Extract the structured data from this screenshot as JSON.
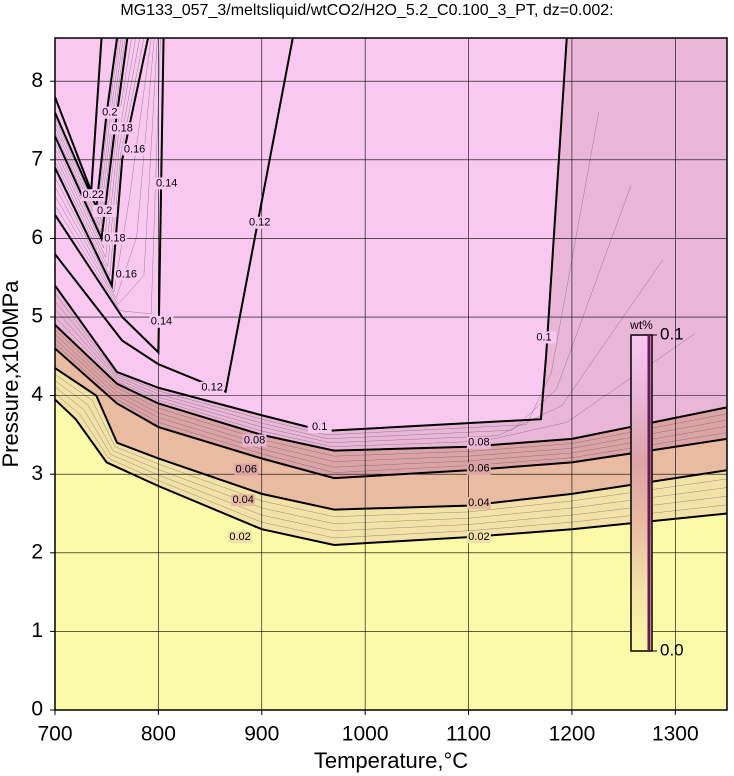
{
  "chart_data": {
    "type": "contour",
    "title": "MG133_057_3/meltsliquid/wtCO2/H2O_5.2_C0.100_3_PT, dz=0.002:",
    "x_label": "Temperature,°C",
    "y_label": "Pressure,x100MPa",
    "xlim": [
      700,
      1350
    ],
    "ylim": [
      0,
      8.55
    ],
    "xticks": [
      700,
      800,
      900,
      1000,
      1100,
      1200,
      1300
    ],
    "yticks": [
      0,
      1,
      2,
      3,
      4,
      5,
      6,
      7,
      8
    ],
    "grid": true,
    "contours": [
      {
        "level": 0.02,
        "x": [
          700,
          720,
          750,
          800,
          900,
          970,
          1100,
          1200,
          1350
        ],
        "y": [
          3.95,
          3.7,
          3.15,
          2.85,
          2.3,
          2.1,
          2.2,
          2.3,
          2.5
        ],
        "labels": [
          {
            "x": 879,
            "y": 2.2
          },
          {
            "x": 1110,
            "y": 2.2
          }
        ]
      },
      {
        "level": 0.04,
        "x": [
          700,
          740,
          760,
          800,
          900,
          970,
          1100,
          1200,
          1350
        ],
        "y": [
          4.35,
          4.0,
          3.4,
          3.2,
          2.75,
          2.55,
          2.6,
          2.75,
          3.05
        ],
        "labels": [
          {
            "x": 882,
            "y": 2.67
          },
          {
            "x": 1110,
            "y": 2.63
          }
        ]
      },
      {
        "level": 0.06,
        "x": [
          700,
          760,
          800,
          900,
          970,
          1100,
          1200,
          1350
        ],
        "y": [
          4.6,
          3.9,
          3.6,
          3.2,
          2.95,
          3.05,
          3.15,
          3.45
        ],
        "labels": [
          {
            "x": 885,
            "y": 3.06
          },
          {
            "x": 1110,
            "y": 3.07
          }
        ]
      },
      {
        "level": 0.08,
        "x": [
          700,
          760,
          800,
          900,
          970,
          1100,
          1200,
          1350
        ],
        "y": [
          4.9,
          4.15,
          3.9,
          3.5,
          3.3,
          3.35,
          3.45,
          3.85
        ],
        "labels": [
          {
            "x": 893,
            "y": 3.43
          },
          {
            "x": 1110,
            "y": 3.4
          }
        ]
      },
      {
        "level": 0.1,
        "x": [
          700,
          760,
          800,
          900,
          960,
          1170,
          1175,
          1195
        ],
        "y": [
          5.4,
          4.3,
          4.1,
          3.75,
          3.55,
          3.7,
          4.5,
          8.55
        ],
        "labels": [
          {
            "x": 956,
            "y": 3.6
          },
          {
            "x": 1173,
            "y": 4.74
          }
        ]
      },
      {
        "level": 0.12,
        "x": [
          700,
          765,
          800,
          865,
          930
        ],
        "y": [
          5.8,
          4.7,
          4.4,
          4.05,
          8.55
        ],
        "labels": [
          {
            "x": 852,
            "y": 4.1
          },
          {
            "x": 898,
            "y": 6.2
          }
        ]
      },
      {
        "level": 0.14,
        "x": [
          700,
          765,
          800,
          805
        ],
        "y": [
          6.3,
          5.0,
          4.55,
          8.55
        ],
        "labels": [
          {
            "x": 803,
            "y": 4.94
          },
          {
            "x": 808,
            "y": 6.7
          }
        ]
      },
      {
        "level": 0.16,
        "x": [
          700,
          755,
          765,
          790
        ],
        "y": [
          6.9,
          5.4,
          7.0,
          8.55
        ],
        "labels": [
          {
            "x": 769,
            "y": 5.54
          },
          {
            "x": 777,
            "y": 7.13
          }
        ]
      },
      {
        "level": 0.18,
        "x": [
          700,
          745,
          758,
          770
        ],
        "y": [
          7.3,
          6.0,
          7.4,
          8.55
        ],
        "labels": [
          {
            "x": 758,
            "y": 6.0
          },
          {
            "x": 765,
            "y": 7.4
          }
        ]
      },
      {
        "level": 0.2,
        "x": [
          700,
          740,
          750,
          760
        ],
        "y": [
          7.6,
          6.4,
          7.6,
          8.55
        ],
        "labels": [
          {
            "x": 748,
            "y": 6.35
          },
          {
            "x": 753,
            "y": 7.6
          }
        ]
      },
      {
        "level": 0.22,
        "x": [
          700,
          735,
          745
        ],
        "y": [
          7.8,
          6.6,
          8.55
        ],
        "labels": [
          {
            "x": 737,
            "y": 6.55
          }
        ]
      }
    ],
    "colorbar": {
      "label": "wt%",
      "ticks": [
        {
          "value": 0,
          "label": "0.0"
        },
        0.1
      ],
      "colormap": [
        "#fbfaa8",
        "#f3e2a8",
        "#e9bca2",
        "#dca3a6",
        "#eab6d8",
        "#f8c8f0"
      ],
      "edge_color": "#6a1a5a"
    }
  }
}
